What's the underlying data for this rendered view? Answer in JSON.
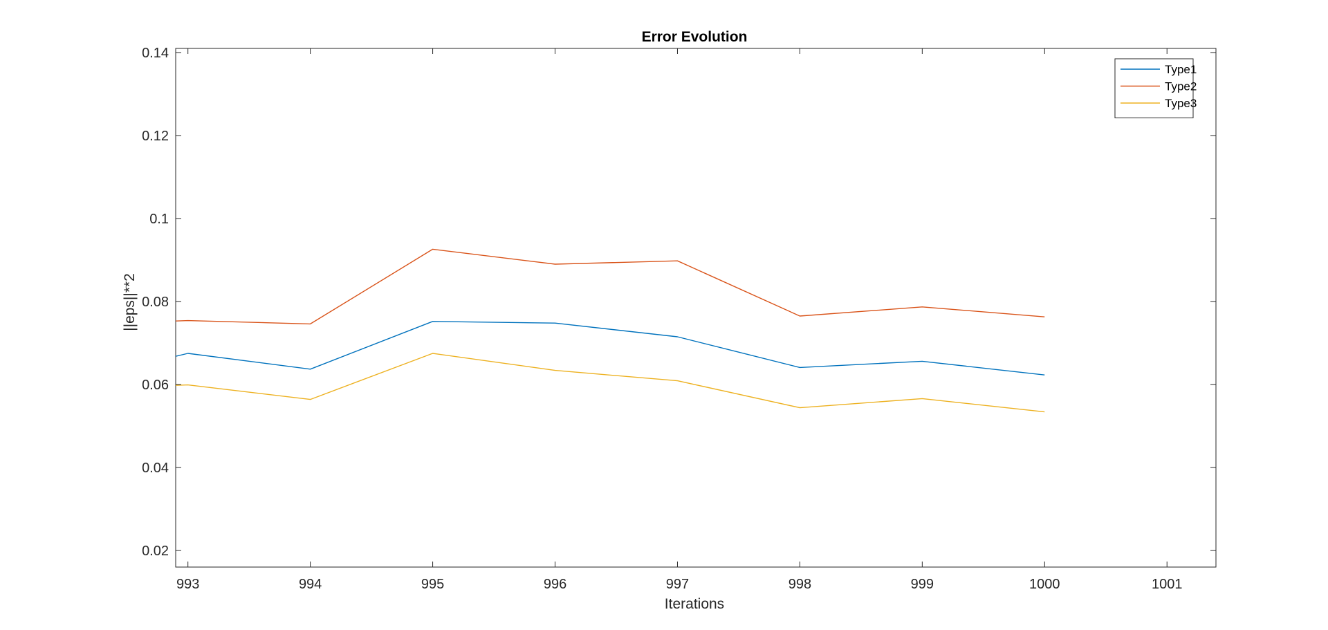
{
  "chart_data": {
    "type": "line",
    "title": "Error Evolution",
    "xlabel": "Iterations",
    "ylabel": "||eps||**2",
    "xlim": [
      992.9,
      1001.4
    ],
    "ylim": [
      0.016,
      0.141
    ],
    "x_ticks": [
      993,
      994,
      995,
      996,
      997,
      998,
      999,
      1000,
      1001
    ],
    "y_ticks": [
      0.02,
      0.04,
      0.06,
      0.08,
      0.1,
      0.12,
      0.14
    ],
    "y_tick_labels": [
      "0.02",
      "0.04",
      "0.06",
      "0.08",
      "0.1",
      "0.12",
      "0.14"
    ],
    "x": [
      992.9,
      993,
      994,
      995,
      996,
      997,
      998,
      999,
      1000
    ],
    "series": [
      {
        "name": "Type1",
        "color": "#0072BD",
        "values": [
          0.0668,
          0.0675,
          0.0637,
          0.0752,
          0.0748,
          0.0715,
          0.0641,
          0.0656,
          0.0623
        ]
      },
      {
        "name": "Type2",
        "color": "#D95319",
        "values": [
          0.0753,
          0.0754,
          0.0746,
          0.0926,
          0.089,
          0.0898,
          0.0765,
          0.0787,
          0.0763
        ]
      },
      {
        "name": "Type3",
        "color": "#EDB120",
        "values": [
          0.0598,
          0.0599,
          0.0564,
          0.0675,
          0.0634,
          0.0609,
          0.0544,
          0.0566,
          0.0534
        ]
      }
    ],
    "grid": false,
    "legend_position": "top-right",
    "box": true
  }
}
